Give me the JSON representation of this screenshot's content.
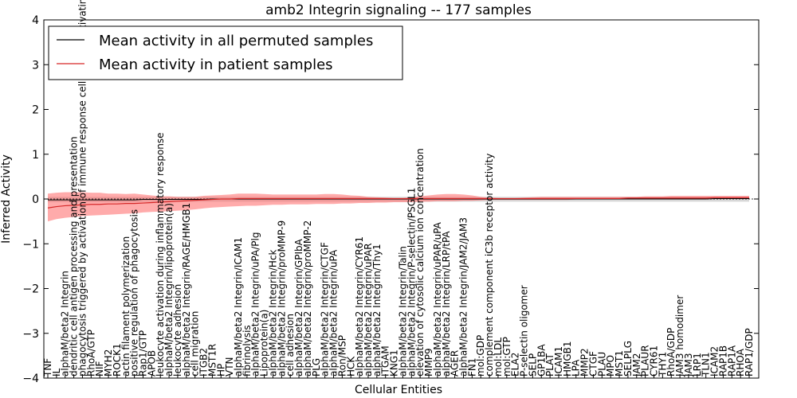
{
  "chart_data": {
    "type": "line",
    "title": "amb2 Integrin signaling -- 177 samples",
    "xlabel": "Cellular Entities",
    "ylabel": "Inferred Activity",
    "ylim": [
      -4,
      4
    ],
    "yticks": [
      -4,
      -3,
      -2,
      -1,
      0,
      1,
      2,
      3,
      4
    ],
    "grid": false,
    "legend_position": "top-left",
    "colors": {
      "patient_line": "#d62728",
      "patient_band": "#ff6666",
      "permuted_line": "#000000",
      "permuted_band": "#c8c8c8"
    },
    "categories": [
      "TNF",
      "IL",
      "alphaM/beta2 Integrin",
      "dendritic cell antigen processing and presentation",
      "phagocytosis triggered by activation of immune response cell surface activating receptor",
      "RhoA/GTP",
      "NIF",
      "MYH2",
      "ROCK1",
      "actin filament polymerization",
      "positive regulation of phagocytosis",
      "Rap1/GTP",
      "APOB",
      "leukocyte activation during inflammatory response",
      "alphaM/beta2 Integrin/lipoprotein(a)",
      "leukocyte adhesion",
      "alphaM/beta2 Integrin/RAGE/HMGB1",
      "cell migration",
      "ITGB2",
      "MST1R",
      "HP",
      "VTN",
      "alphaM/beta2 Integrin/ICAM1",
      "fibrinolysis",
      "alphaM/beta2 Integrin/uPA/Plg",
      "Lipoprotein(a)",
      "alphaM/beta2 Integrin/Hck",
      "alphaM/beta2 Integrin/proMMP-9",
      "cell adhesion",
      "alphaM/beta2 Integrin/GPIbA",
      "alphaM/beta2 Integrin/proMMP-2",
      "PLG",
      "alphaM/beta2 Integrin/CTGF",
      "alphaM/beta2 Integrin/uPA",
      "Ron/MSP",
      "HCK",
      "alphaM/beta2 Integrin/CYR61",
      "alphaM/beta2 Integrin/uPAR",
      "alphaM/beta2 Integrin/Thy1",
      "ITGAM",
      "KNG1",
      "alphaM/beta2 Integrin/Talin",
      "alphaM/beta2 Integrin/P-selectin/PSGL1",
      "elevation of cytosolic calcium ion concentration",
      "MMP9",
      "alphaM/beta2 Integrin/uPAR/uPA",
      "alphaM/beta2 Integrin/LRP/tPA",
      "AGER",
      "alphaM/beta2 Integrin/JAM2/JAM3",
      "FN1",
      "mol:GDP",
      "complement component iC3b receptor activity",
      "mol:LDL",
      "mol:GTP",
      "ELA2",
      "P-selectin oligomer",
      "SELP",
      "GP1BA",
      "PLAT",
      "ICAM1",
      "HMGB1",
      "LPA",
      "MMP2",
      "CTGF",
      "PLAU",
      "MPO",
      "MST1",
      "SELPLG",
      "JAM2",
      "PLAUR",
      "CYR61",
      "THY1",
      "RhoA/GDP",
      "JAM3 homodimer",
      "JAM3",
      "LRP1",
      "TLN1",
      "ICAM2",
      "RAP1B",
      "RAP1A",
      "RHOA",
      "RAP1/GDP"
    ],
    "series": [
      {
        "name": "Mean activity in all permuted samples",
        "values": [
          -0.02,
          -0.02,
          -0.02,
          -0.02,
          -0.02,
          -0.02,
          -0.02,
          -0.02,
          -0.02,
          -0.02,
          -0.02,
          -0.01,
          -0.01,
          -0.01,
          -0.01,
          -0.01,
          -0.01,
          -0.01,
          -0.01,
          0.0,
          0.0,
          0.0,
          0.0,
          0.0,
          0.0,
          0.0,
          0.0,
          0.0,
          0.0,
          0.0,
          0.0,
          0.0,
          0.0,
          0.0,
          0.0,
          0.0,
          0.0,
          0.0,
          0.0,
          0.0,
          0.0,
          0.0,
          0.0,
          0.0,
          0.0,
          0.0,
          0.0,
          0.0,
          0.0,
          0.0,
          0.0,
          0.0,
          0.0,
          0.0,
          0.0,
          0.0,
          0.0,
          0.0,
          0.0,
          0.0,
          0.0,
          0.0,
          0.0,
          0.0,
          0.0,
          0.0,
          0.0,
          0.0,
          0.0,
          0.0,
          0.0,
          0.0,
          0.0,
          0.0,
          0.0,
          0.0,
          0.0,
          0.01,
          0.01,
          0.01,
          0.01,
          0.01
        ]
      },
      {
        "name": "Mean activity in patient samples",
        "values": [
          -0.2,
          -0.17,
          -0.15,
          -0.14,
          -0.13,
          -0.12,
          -0.12,
          -0.11,
          -0.11,
          -0.1,
          -0.1,
          -0.09,
          -0.08,
          -0.07,
          -0.06,
          -0.05,
          -0.04,
          -0.03,
          -0.02,
          -0.01,
          0.0,
          0.0,
          0.01,
          0.01,
          0.01,
          0.01,
          0.01,
          0.01,
          0.01,
          0.01,
          0.01,
          0.01,
          0.01,
          0.01,
          0.01,
          0.01,
          0.01,
          0.01,
          0.01,
          0.01,
          0.01,
          0.01,
          0.01,
          0.01,
          0.01,
          0.01,
          0.01,
          0.01,
          0.01,
          0.01,
          0.01,
          0.01,
          0.01,
          0.01,
          0.01,
          0.01,
          0.01,
          0.01,
          0.01,
          0.01,
          0.01,
          0.01,
          0.01,
          0.01,
          0.01,
          0.01,
          0.01,
          0.02,
          0.02,
          0.02,
          0.02,
          0.02,
          0.02,
          0.02,
          0.02,
          0.02,
          0.02,
          0.03,
          0.03,
          0.03,
          0.03,
          0.03
        ]
      }
    ],
    "patient_band": {
      "upper": [
        0.12,
        0.14,
        0.15,
        0.15,
        0.15,
        0.14,
        0.14,
        0.12,
        0.12,
        0.11,
        0.12,
        0.1,
        0.08,
        0.06,
        0.06,
        0.05,
        0.05,
        0.05,
        0.07,
        0.08,
        0.09,
        0.1,
        0.12,
        0.12,
        0.12,
        0.11,
        0.1,
        0.1,
        0.1,
        0.1,
        0.1,
        0.1,
        0.11,
        0.11,
        0.1,
        0.08,
        0.07,
        0.05,
        0.04,
        0.03,
        0.02,
        0.02,
        0.04,
        0.06,
        0.08,
        0.1,
        0.11,
        0.11,
        0.1,
        0.08,
        0.05,
        0.03,
        0.02,
        0.02,
        0.02,
        0.03,
        0.04,
        0.05,
        0.05,
        0.05,
        0.05,
        0.05,
        0.05,
        0.05,
        0.05,
        0.05,
        0.05,
        0.05,
        0.05,
        0.06,
        0.06,
        0.06,
        0.07,
        0.07,
        0.07,
        0.07,
        0.07,
        0.07,
        0.07,
        0.07,
        0.07,
        0.07
      ],
      "lower": [
        -0.5,
        -0.45,
        -0.42,
        -0.4,
        -0.38,
        -0.37,
        -0.36,
        -0.35,
        -0.34,
        -0.33,
        -0.32,
        -0.3,
        -0.29,
        -0.28,
        -0.27,
        -0.26,
        -0.25,
        -0.23,
        -0.21,
        -0.19,
        -0.18,
        -0.17,
        -0.16,
        -0.15,
        -0.15,
        -0.14,
        -0.13,
        -0.13,
        -0.12,
        -0.12,
        -0.12,
        -0.11,
        -0.11,
        -0.11,
        -0.1,
        -0.1,
        -0.09,
        -0.09,
        -0.08,
        -0.08,
        -0.07,
        -0.07,
        -0.07,
        -0.06,
        -0.06,
        -0.05,
        -0.05,
        -0.05,
        -0.04,
        -0.04,
        -0.03,
        -0.02,
        -0.02,
        -0.02,
        -0.02,
        -0.02,
        -0.02,
        -0.02,
        -0.02,
        -0.02,
        -0.02,
        -0.01,
        -0.01,
        -0.01,
        -0.01,
        -0.01,
        -0.01,
        -0.01,
        -0.01,
        -0.01,
        -0.01,
        -0.01,
        -0.01,
        0.0,
        0.0,
        0.0,
        0.0,
        0.0,
        0.0,
        0.0,
        0.0,
        0.0
      ]
    },
    "permuted_band": {
      "upper": [
        0.05,
        0.05,
        0.05,
        0.05,
        0.05,
        0.05,
        0.05,
        0.05,
        0.05,
        0.05,
        0.05,
        0.05,
        0.05,
        0.05,
        0.05,
        0.05,
        0.05,
        0.05,
        0.05,
        0.05,
        0.05,
        0.05,
        0.05,
        0.05,
        0.05,
        0.05,
        0.05,
        0.05,
        0.05,
        0.05,
        0.05,
        0.05,
        0.05,
        0.05,
        0.05,
        0.05,
        0.05,
        0.05,
        0.05,
        0.05,
        0.05,
        0.05,
        0.05,
        0.05,
        0.05,
        0.05,
        0.05,
        0.05,
        0.05,
        0.05,
        0.05,
        0.05,
        0.05,
        0.05,
        0.05,
        0.05,
        0.05,
        0.05,
        0.05,
        0.05,
        0.05,
        0.05,
        0.05,
        0.05,
        0.05,
        0.05,
        0.05,
        0.05,
        0.05,
        0.05,
        0.05,
        0.05,
        0.05,
        0.05,
        0.05,
        0.05,
        0.05,
        0.05,
        0.05,
        0.05,
        0.05,
        0.05
      ],
      "lower": [
        -0.07,
        -0.07,
        -0.07,
        -0.07,
        -0.07,
        -0.07,
        -0.07,
        -0.07,
        -0.07,
        -0.07,
        -0.07,
        -0.06,
        -0.06,
        -0.06,
        -0.06,
        -0.06,
        -0.06,
        -0.06,
        -0.06,
        -0.06,
        -0.06,
        -0.06,
        -0.06,
        -0.06,
        -0.06,
        -0.06,
        -0.06,
        -0.06,
        -0.06,
        -0.06,
        -0.06,
        -0.06,
        -0.06,
        -0.06,
        -0.06,
        -0.06,
        -0.06,
        -0.06,
        -0.06,
        -0.06,
        -0.06,
        -0.06,
        -0.06,
        -0.06,
        -0.06,
        -0.06,
        -0.06,
        -0.06,
        -0.06,
        -0.06,
        -0.06,
        -0.06,
        -0.06,
        -0.06,
        -0.06,
        -0.06,
        -0.06,
        -0.06,
        -0.06,
        -0.06,
        -0.06,
        -0.06,
        -0.06,
        -0.06,
        -0.06,
        -0.06,
        -0.06,
        -0.06,
        -0.06,
        -0.06,
        -0.06,
        -0.06,
        -0.06,
        -0.06,
        -0.06,
        -0.06,
        -0.06,
        -0.06,
        -0.06,
        -0.06,
        -0.06,
        -0.06
      ]
    }
  }
}
